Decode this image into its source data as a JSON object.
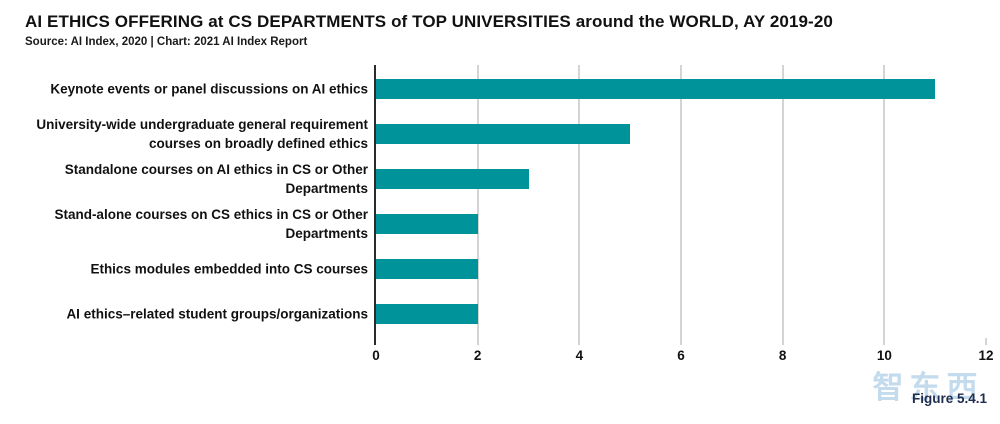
{
  "header": {
    "title": "AI ETHICS OFFERING at CS DEPARTMENTS of TOP UNIVERSITIES around the WORLD, AY 2019-20",
    "source": "Source: AI Index, 2020 | Chart: 2021 AI Index Report"
  },
  "chart_data": {
    "type": "bar",
    "orientation": "horizontal",
    "title": "AI ETHICS OFFERING at CS DEPARTMENTS of TOP UNIVERSITIES around the WORLD, AY 2019-20",
    "categories": [
      "Keynote events or panel discussions on AI ethics",
      "University-wide undergraduate general requirement courses on broadly defined ethics",
      "Standalone courses on AI ethics in CS or Other Departments",
      "Stand-alone courses on CS ethics in CS or Other Departments",
      "Ethics modules embedded into CS courses",
      "AI ethics–related student groups/organizations"
    ],
    "label_lines": [
      [
        "Keynote events or panel discussions on AI ethics"
      ],
      [
        "University-wide undergraduate general requirement",
        "courses on broadly defined ethics"
      ],
      [
        "Standalone courses on AI ethics in CS or Other",
        "Departments"
      ],
      [
        "Stand-alone courses on CS ethics in CS or Other",
        "Departments"
      ],
      [
        "Ethics modules embedded into CS courses"
      ],
      [
        "AI ethics–related student groups/organizations"
      ]
    ],
    "values": [
      11,
      5,
      3,
      2,
      2,
      2
    ],
    "xlabel": "",
    "ylabel": "",
    "xlim": [
      0,
      12
    ],
    "xticks": [
      0,
      2,
      4,
      6,
      8,
      10,
      12
    ],
    "grid": true,
    "legend": "none",
    "bar_color": "#009399",
    "grid_color": "#d4d4d4",
    "axis_color": "#2b2b2b"
  },
  "footer": {
    "figure_label": "Figure 5.4.1",
    "watermark_text": "智东西",
    "watermark_color": "#bdd8ea",
    "figure_label_color": "#1f2d4e"
  }
}
